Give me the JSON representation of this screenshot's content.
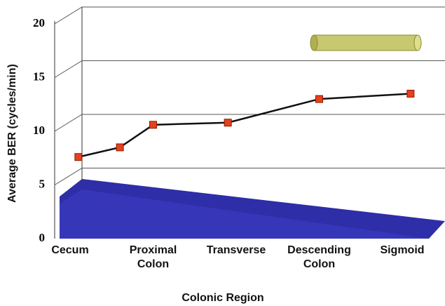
{
  "chart_data": {
    "type": "line",
    "x_label": "Colonic Region",
    "y_label": "Average BER (cycles/min)",
    "x": [
      0.1,
      0.6,
      1.0,
      1.9,
      3.0,
      4.1
    ],
    "series": [
      {
        "color": "#e8401c",
        "values": [
          7.6,
          8.5,
          10.6,
          10.8,
          13.0,
          13.5
        ]
      }
    ],
    "xlim": [
      -0.25,
      4.5
    ],
    "xticks": [
      {
        "value": 0,
        "label": "Cecum"
      },
      {
        "value": 1,
        "label": "Proximal Colon"
      },
      {
        "value": 2,
        "label": "Transverse"
      },
      {
        "value": 3,
        "label": "Descending Colon"
      },
      {
        "value": 4,
        "label": "Sigmoid"
      }
    ],
    "ylim": [
      0,
      20
    ],
    "yticks": [
      0,
      5,
      10,
      15,
      20
    ],
    "grid": true
  }
}
